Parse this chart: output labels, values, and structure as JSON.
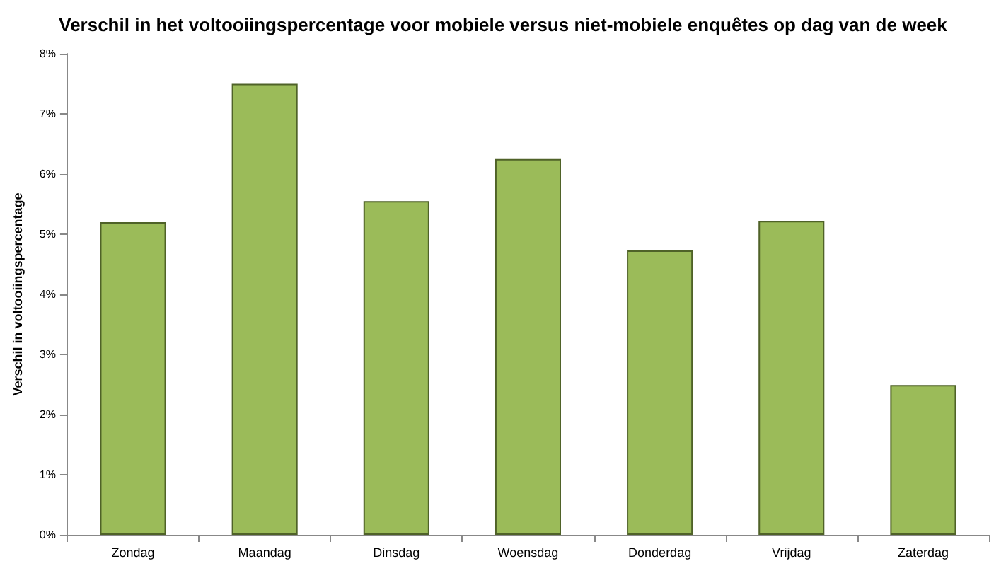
{
  "chart_data": {
    "type": "bar",
    "title": "Verschil in het voltooiingspercentage voor mobiele versus niet-mobiele enquêtes op dag van de week",
    "ylabel": "Verschil in voltooiingspercentage",
    "categories": [
      "Zondag",
      "Maandag",
      "Dinsdag",
      "Woensdag",
      "Donderdag",
      "Vrijdag",
      "Zaterdag"
    ],
    "values": [
      5.2,
      7.5,
      5.55,
      6.25,
      4.73,
      5.22,
      2.49
    ],
    "color": "#9bbb59",
    "ylim": [
      0,
      8
    ],
    "yticks": [
      {
        "value": 0,
        "label": "0%"
      },
      {
        "value": 1,
        "label": "1%"
      },
      {
        "value": 2,
        "label": "2%"
      },
      {
        "value": 3,
        "label": "3%"
      },
      {
        "value": 4,
        "label": "4%"
      },
      {
        "value": 5,
        "label": "5%"
      },
      {
        "value": 6,
        "label": "6%"
      },
      {
        "value": 7,
        "label": "7%"
      },
      {
        "value": 8,
        "label": "8%"
      }
    ],
    "grid": false
  }
}
